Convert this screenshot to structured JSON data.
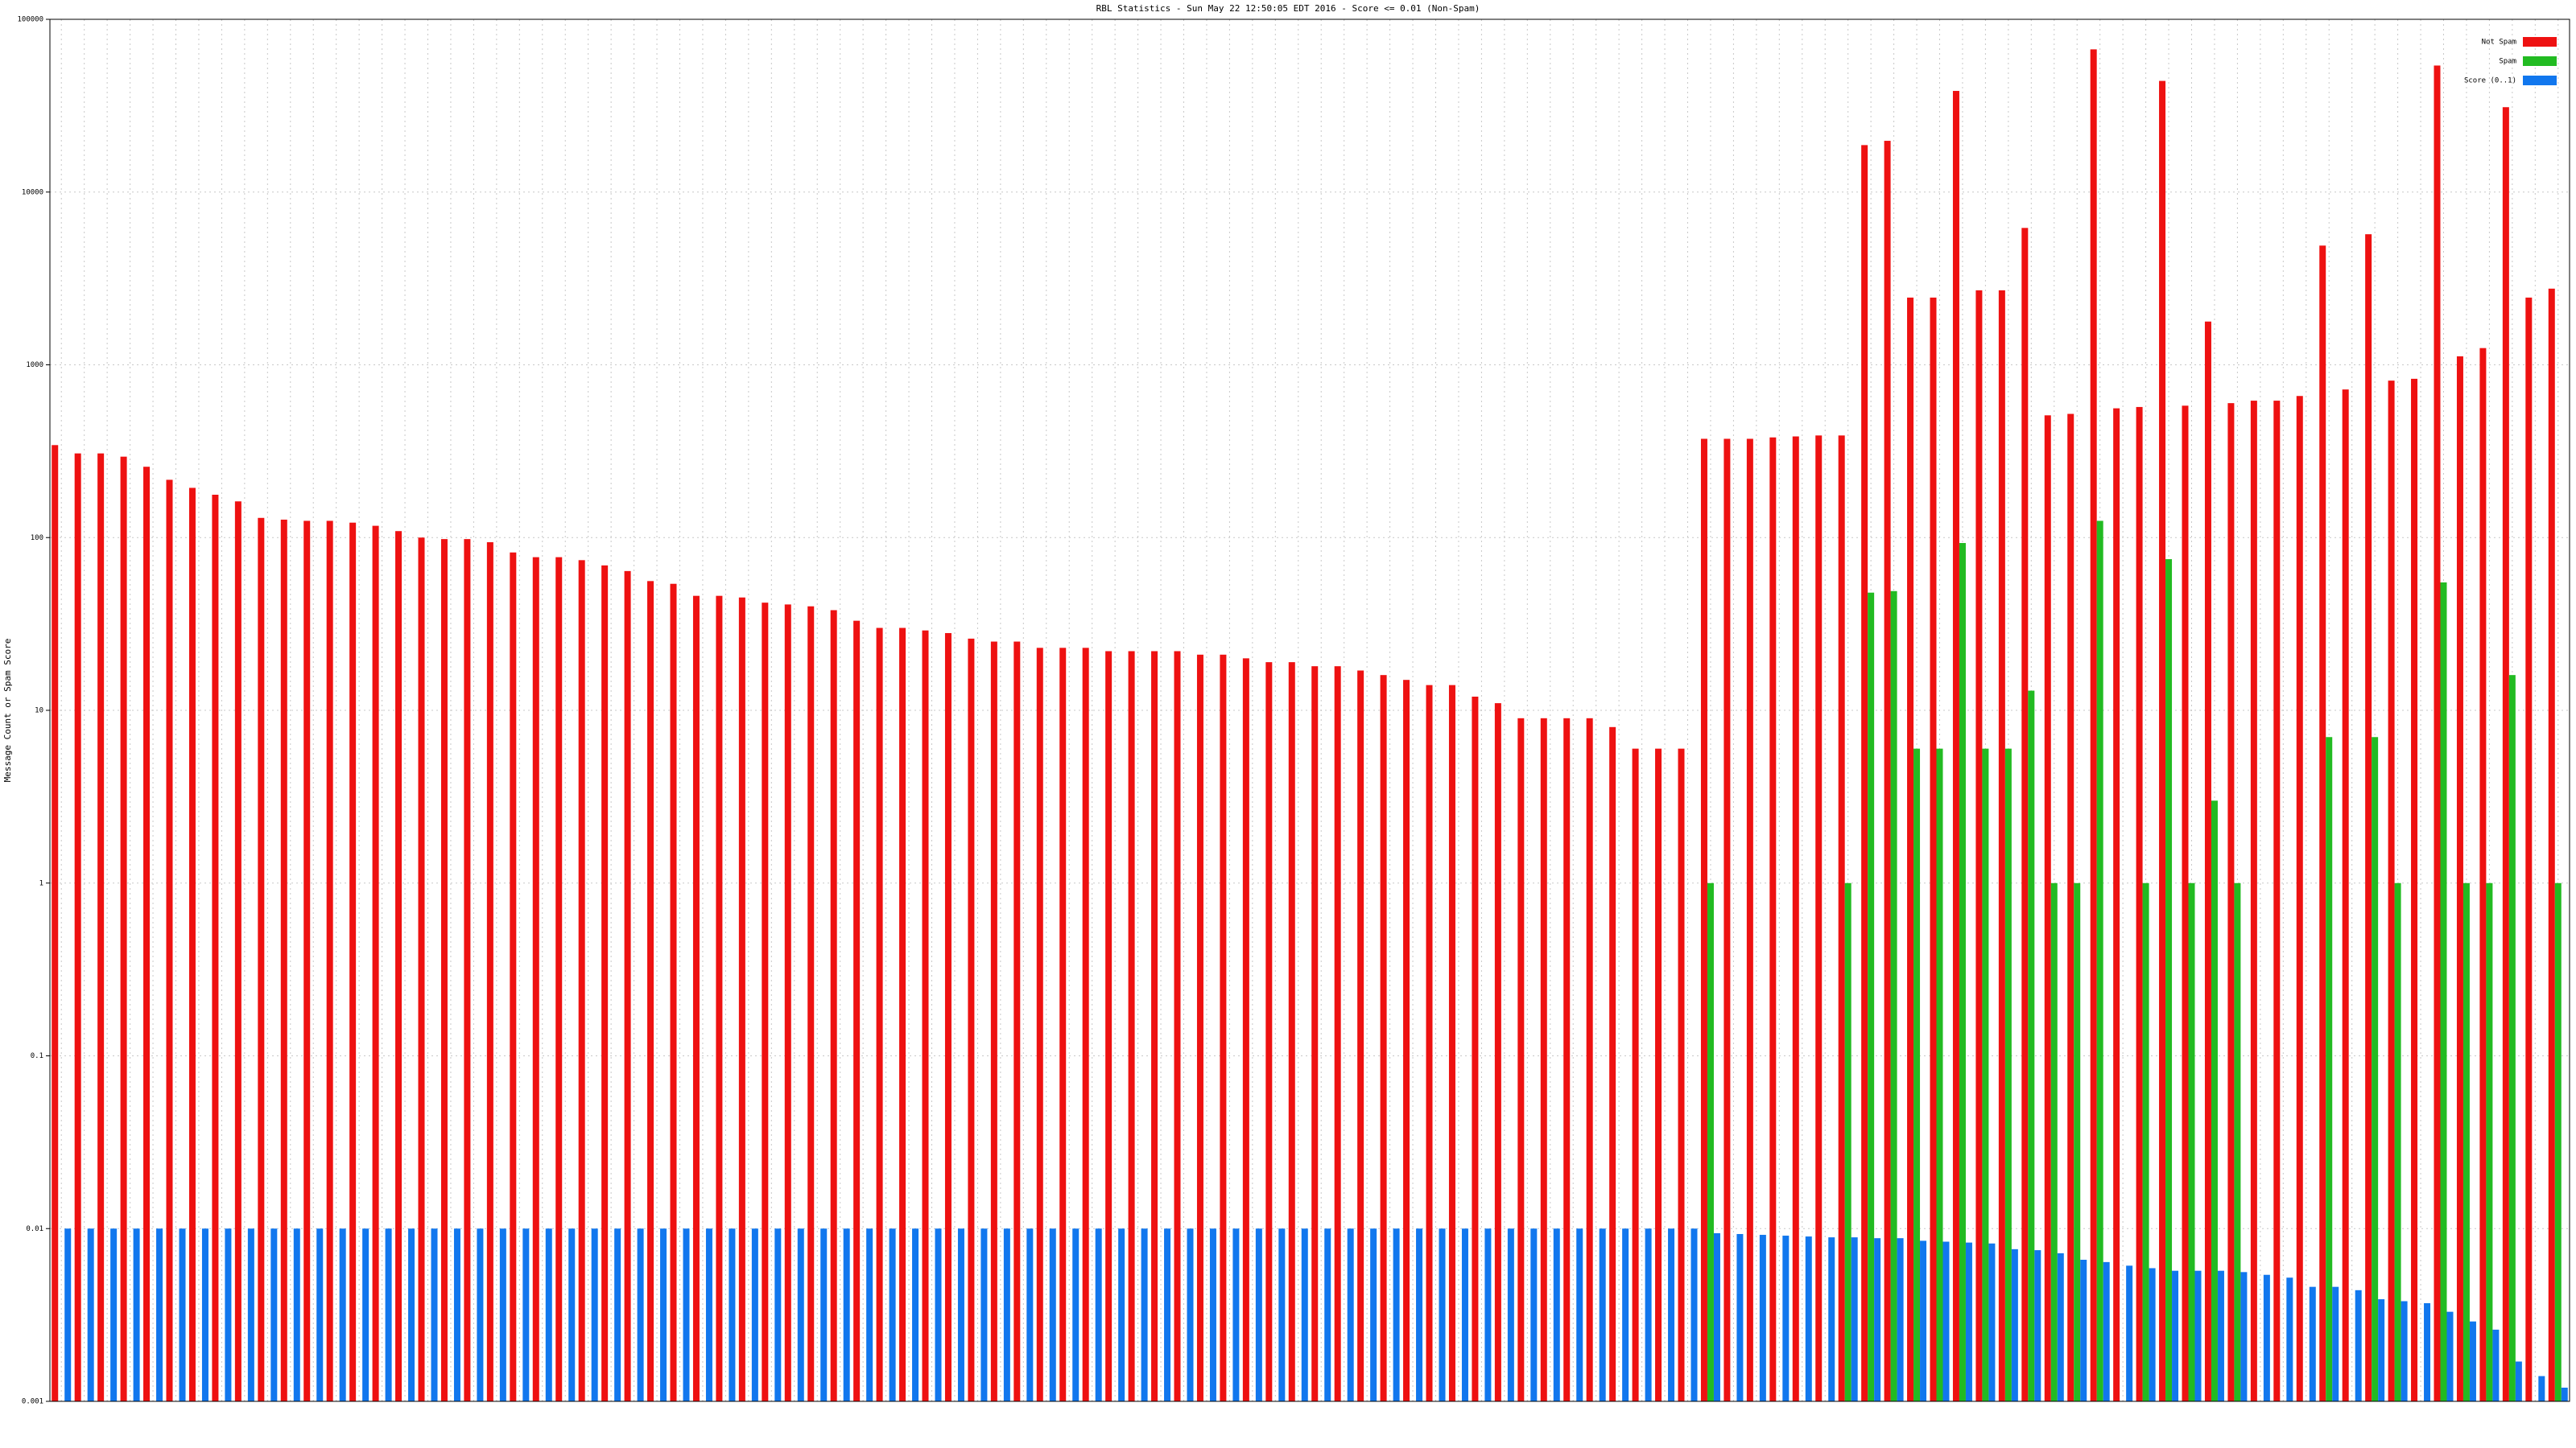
{
  "chart_data": {
    "type": "bar",
    "title": "RBL Statistics - Sun May 22 12:50:05 EDT 2016 - Score <= 0.01 (Non-Spam)",
    "y_label": "Message Count or Spam Score",
    "log_scale": true,
    "grid": true,
    "legend": "top-right",
    "categories": [
      null,
      null,
      null,
      null,
      null,
      null,
      null,
      null,
      null,
      null,
      null,
      null,
      null,
      null,
      null,
      null,
      null,
      null,
      null,
      null,
      null,
      null,
      null,
      null,
      null,
      null,
      null,
      null,
      null,
      null,
      null,
      null,
      null,
      null,
      null,
      null,
      null,
      null,
      null,
      null,
      null,
      null,
      null,
      null,
      null,
      null,
      null,
      null,
      null,
      null,
      null,
      null,
      null,
      null,
      null,
      null,
      null,
      null,
      null,
      null,
      null,
      null,
      null,
      null,
      null,
      null,
      null,
      null,
      null,
      null,
      null,
      null,
      null,
      null,
      null,
      null,
      null,
      null,
      null,
      null,
      null,
      null,
      null,
      null,
      null,
      null,
      null,
      null,
      null,
      null,
      null,
      null,
      null,
      null,
      null,
      null,
      null,
      null,
      null,
      null,
      null,
      null,
      null,
      null,
      null,
      null,
      null,
      null,
      null,
      null
    ],
    "series": [
      {
        "name": "Not Spam",
        "color": "#ee1111",
        "values": [
          343,
          307,
          307,
          294,
          257,
          216,
          194,
          177,
          162,
          130,
          127,
          125,
          125,
          122,
          117,
          109,
          100,
          98,
          98,
          94,
          82,
          77,
          77,
          74,
          69,
          64,
          56,
          54,
          46,
          46,
          45,
          42,
          41,
          40,
          38,
          33,
          30,
          30,
          29,
          28,
          26,
          25,
          25,
          23,
          23,
          23,
          22,
          22,
          22,
          22,
          21,
          21,
          20,
          19,
          19,
          18,
          18,
          17,
          16,
          15,
          14,
          14,
          12,
          11,
          9,
          9,
          9,
          9,
          8,
          6,
          6,
          6,
          373,
          373,
          373,
          380,
          385,
          390,
          390,
          18700,
          19800,
          2450,
          2450,
          38500,
          2700,
          2700,
          6200,
          510,
          520,
          67000,
          560,
          570,
          44000,
          580,
          1780,
          600,
          620,
          620,
          660,
          4900,
          720,
          5700,
          810,
          830,
          54000,
          1120,
          1250,
          31000,
          2450,
          2760
        ]
      },
      {
        "name": "Spam",
        "color": "#22bb22",
        "values": [
          null,
          null,
          null,
          null,
          null,
          null,
          null,
          null,
          null,
          null,
          null,
          null,
          null,
          null,
          null,
          null,
          null,
          null,
          null,
          null,
          null,
          null,
          null,
          null,
          null,
          null,
          null,
          null,
          null,
          null,
          null,
          null,
          null,
          null,
          null,
          null,
          null,
          null,
          null,
          null,
          null,
          null,
          null,
          null,
          null,
          null,
          null,
          null,
          null,
          null,
          null,
          null,
          null,
          null,
          null,
          null,
          null,
          null,
          null,
          null,
          null,
          null,
          null,
          null,
          null,
          null,
          null,
          null,
          null,
          null,
          null,
          null,
          1,
          null,
          null,
          null,
          null,
          null,
          1,
          48,
          49,
          6,
          6,
          93,
          6,
          6,
          13,
          1,
          1,
          125,
          null,
          1,
          75,
          1,
          3,
          1,
          null,
          null,
          null,
          7,
          null,
          7,
          1,
          null,
          55,
          1,
          1,
          16,
          null,
          1
        ]
      },
      {
        "name": "Score (0..1)",
        "color": "#1177ee",
        "values": [
          0.01,
          0.01,
          0.01,
          0.01,
          0.01,
          0.01,
          0.01,
          0.01,
          0.01,
          0.01,
          0.01,
          0.01,
          0.01,
          0.01,
          0.01,
          0.01,
          0.01,
          0.01,
          0.01,
          0.01,
          0.01,
          0.01,
          0.01,
          0.01,
          0.01,
          0.01,
          0.01,
          0.01,
          0.01,
          0.01,
          0.01,
          0.01,
          0.01,
          0.01,
          0.01,
          0.01,
          0.01,
          0.01,
          0.01,
          0.01,
          0.01,
          0.01,
          0.01,
          0.01,
          0.01,
          0.01,
          0.01,
          0.01,
          0.01,
          0.01,
          0.01,
          0.01,
          0.01,
          0.01,
          0.01,
          0.01,
          0.01,
          0.01,
          0.01,
          0.01,
          0.01,
          0.01,
          0.01,
          0.01,
          0.01,
          0.01,
          0.01,
          0.01,
          0.01,
          0.01,
          0.01,
          0.01,
          0.0094,
          0.0093,
          0.0092,
          0.0091,
          0.009,
          0.0089,
          0.0089,
          0.0088,
          0.0088,
          0.0085,
          0.0084,
          0.0083,
          0.0082,
          0.0076,
          0.0075,
          0.0072,
          0.0066,
          0.0064,
          0.0061,
          0.0059,
          0.0057,
          0.0057,
          0.0057,
          0.0056,
          0.0054,
          0.0052,
          0.0046,
          0.0046,
          0.0044,
          0.0039,
          0.0038,
          0.0037,
          0.0033,
          0.0029,
          0.0026,
          0.0017,
          0.0014,
          0.0012
        ]
      }
    ],
    "ylim": [
      0.001,
      100000
    ],
    "yticks": [
      0.001,
      0.01,
      0.1,
      1,
      10,
      100,
      1000,
      10000,
      100000
    ]
  }
}
